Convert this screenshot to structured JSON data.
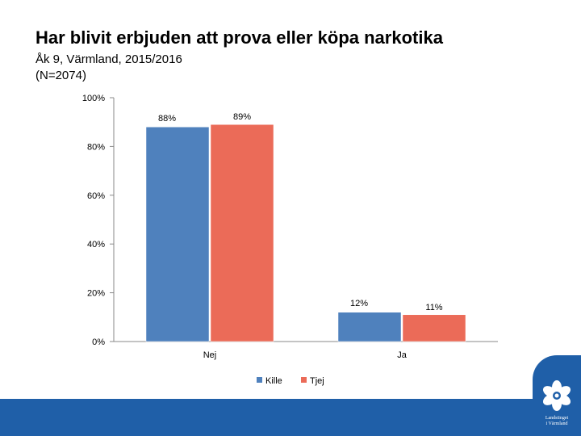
{
  "header": {
    "title": "Har blivit erbjuden att prova eller köpa narkotika",
    "subtitle_line1": "Åk 9, Värmland, 2015/2016",
    "subtitle_line2": "(N=2074)"
  },
  "chart_data": {
    "type": "bar",
    "categories": [
      "Nej",
      "Ja"
    ],
    "series": [
      {
        "name": "Kille",
        "values": [
          88,
          12
        ],
        "labels": [
          "88%",
          "12%"
        ],
        "color": "#4f81bd"
      },
      {
        "name": "Tjej",
        "values": [
          89,
          11
        ],
        "labels": [
          "89%",
          "11%"
        ],
        "color": "#eb6b58"
      }
    ],
    "ylim": [
      0,
      100
    ],
    "yticks": [
      0,
      20,
      40,
      60,
      80,
      100
    ],
    "ytick_labels": [
      "0%",
      "20%",
      "40%",
      "60%",
      "80%",
      "100%"
    ],
    "legend_position": "bottom",
    "grid": false
  },
  "logo": {
    "line1": "Landstinget",
    "line2": "i Värmland",
    "name": "flower-logo-icon",
    "background_color": "#1f5fa8"
  }
}
